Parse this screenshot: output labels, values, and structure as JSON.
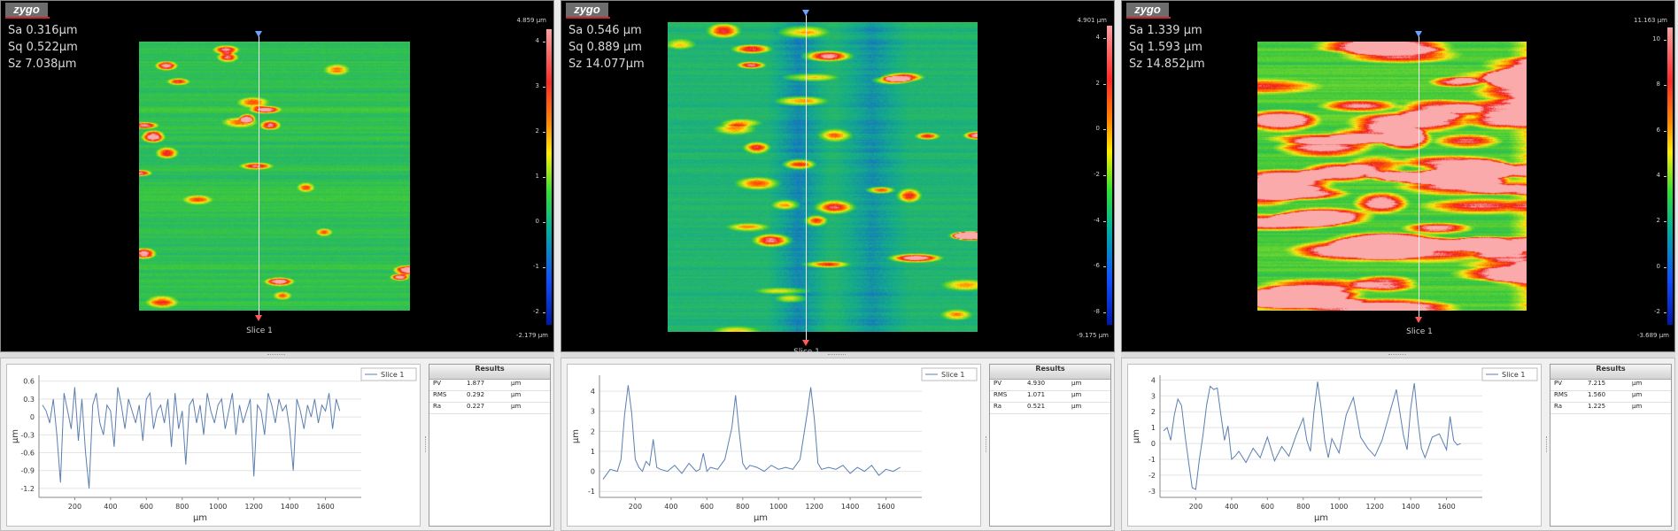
{
  "panels": [
    {
      "logo": "zygo",
      "stats": {
        "sa": "Sa 0.316µm",
        "sq": "Sq 0.522µm",
        "sz": "Sz 7.038µm"
      },
      "colorbar": {
        "max_label": "4.859 µm",
        "min_label": "-2.179 µm",
        "ticks": [
          "4",
          "3",
          "2",
          "1",
          "0",
          "-1",
          "-2"
        ]
      },
      "slice_label": "Slice 1",
      "legend": "Slice 1",
      "chart_data": {
        "type": "line",
        "x": [
          20,
          40,
          60,
          80,
          100,
          120,
          140,
          160,
          180,
          200,
          220,
          240,
          260,
          280,
          300,
          320,
          340,
          360,
          380,
          400,
          420,
          440,
          460,
          480,
          500,
          520,
          540,
          560,
          580,
          600,
          620,
          640,
          660,
          680,
          700,
          720,
          740,
          760,
          780,
          800,
          820,
          840,
          860,
          880,
          900,
          920,
          940,
          960,
          980,
          1000,
          1020,
          1040,
          1060,
          1080,
          1100,
          1120,
          1140,
          1160,
          1180,
          1200,
          1220,
          1240,
          1260,
          1280,
          1300,
          1320,
          1340,
          1360,
          1380,
          1400,
          1420,
          1440,
          1460,
          1480,
          1500,
          1520,
          1540,
          1560,
          1580,
          1600,
          1620,
          1640,
          1660,
          1680
        ],
        "y": [
          0.2,
          0.1,
          -0.1,
          0.3,
          -0.3,
          -1.1,
          0.4,
          0.1,
          -0.2,
          0.5,
          -0.4,
          0.3,
          -0.6,
          -1.2,
          0.2,
          0.4,
          -0.1,
          -0.3,
          0.2,
          0.1,
          -0.5,
          0.5,
          0.2,
          -0.2,
          0.3,
          0.1,
          -0.1,
          0.2,
          -0.4,
          0.3,
          0.4,
          -0.2,
          0.1,
          0.2,
          -0.1,
          0.3,
          -0.5,
          0.4,
          -0.2,
          0.1,
          -0.8,
          0.2,
          0.3,
          -0.1,
          0.2,
          -0.3,
          0.4,
          0.1,
          -0.1,
          0.2,
          0.3,
          -0.2,
          0.1,
          0.4,
          -0.3,
          0.2,
          -0.1,
          0.1,
          0.3,
          -1.0,
          0.2,
          0.1,
          -0.3,
          0.4,
          0.2,
          -0.1,
          0.3,
          0.1,
          0.2,
          -0.2,
          -0.9,
          0.3,
          0.1,
          -0.2,
          0.2,
          0.0,
          0.3,
          -0.1,
          0.2,
          0.1,
          0.4,
          -0.2,
          0.3,
          0.1
        ],
        "xlabel": "µm",
        "ylabel": "µm",
        "xticks": [
          200,
          400,
          600,
          800,
          1000,
          1200,
          1400,
          1600
        ],
        "yticks": [
          0.6,
          0.3,
          0,
          -0.3,
          -0.6,
          -0.9,
          -1.2
        ],
        "xlim": [
          0,
          1800
        ],
        "ylim": [
          -1.35,
          0.7
        ]
      },
      "results": {
        "title": "Results",
        "rows": [
          {
            "name": "PV",
            "value": "1.877",
            "unit": "µm"
          },
          {
            "name": "RMS",
            "value": "0.292",
            "unit": "µm"
          },
          {
            "name": "Ra",
            "value": "0.227",
            "unit": "µm"
          }
        ]
      }
    },
    {
      "logo": "zygo",
      "stats": {
        "sa": "Sa 0.546  µm",
        "sq": "Sq 0.889  µm",
        "sz": "Sz 14.077µm"
      },
      "colorbar": {
        "max_label": "4.901 µm",
        "min_label": "-9.175 µm",
        "ticks": [
          "4",
          "2",
          "0",
          "-2",
          "-4",
          "-6",
          "-8"
        ]
      },
      "slice_label": "Slice 1",
      "legend": "Slice 1",
      "chart_data": {
        "type": "line",
        "x": [
          20,
          60,
          100,
          120,
          140,
          160,
          180,
          200,
          220,
          240,
          260,
          280,
          300,
          320,
          340,
          380,
          420,
          460,
          500,
          540,
          560,
          580,
          600,
          620,
          660,
          700,
          740,
          760,
          780,
          800,
          820,
          840,
          880,
          920,
          960,
          1000,
          1040,
          1080,
          1120,
          1160,
          1180,
          1200,
          1220,
          1240,
          1280,
          1320,
          1360,
          1400,
          1440,
          1480,
          1520,
          1560,
          1600,
          1640,
          1680
        ],
        "y": [
          -0.4,
          0.1,
          0.0,
          0.6,
          2.8,
          4.3,
          2.9,
          0.6,
          0.2,
          0.0,
          0.5,
          0.3,
          1.6,
          0.2,
          0.1,
          0.0,
          0.3,
          -0.1,
          0.4,
          0.0,
          0.1,
          0.9,
          0.0,
          0.2,
          0.1,
          0.6,
          2.2,
          3.8,
          2.0,
          0.4,
          0.1,
          0.3,
          0.2,
          0.0,
          0.3,
          0.1,
          0.2,
          0.1,
          0.6,
          2.9,
          4.2,
          2.6,
          0.4,
          0.1,
          0.2,
          0.1,
          0.3,
          -0.1,
          0.2,
          0.0,
          0.3,
          -0.2,
          0.1,
          0.0,
          0.2
        ],
        "xlabel": "µm",
        "ylabel": "µm",
        "xticks": [
          200,
          400,
          600,
          800,
          1000,
          1200,
          1400,
          1600
        ],
        "yticks": [
          4,
          3,
          2,
          1,
          0,
          -1
        ],
        "xlim": [
          0,
          1800
        ],
        "ylim": [
          -1.3,
          4.8
        ]
      },
      "results": {
        "title": "Results",
        "rows": [
          {
            "name": "PV",
            "value": "4.930",
            "unit": "µm"
          },
          {
            "name": "RMS",
            "value": "1.071",
            "unit": "µm"
          },
          {
            "name": "Ra",
            "value": "0.521",
            "unit": "µm"
          }
        ]
      }
    },
    {
      "logo": "zygo",
      "stats": {
        "sa": "Sa 1.339  µm",
        "sq": "Sq 1.593  µm",
        "sz": "Sz 14.852µm"
      },
      "colorbar": {
        "max_label": "11.163 µm",
        "min_label": "-3.689 µm",
        "ticks": [
          "10",
          "8",
          "6",
          "4",
          "2",
          "0",
          "-2"
        ]
      },
      "slice_label": "Slice 1",
      "legend": "Slice 1",
      "chart_data": {
        "type": "line",
        "x": [
          20,
          40,
          60,
          80,
          100,
          120,
          140,
          160,
          180,
          200,
          220,
          240,
          260,
          280,
          300,
          320,
          340,
          360,
          380,
          400,
          420,
          440,
          480,
          520,
          560,
          600,
          640,
          680,
          720,
          760,
          800,
          820,
          840,
          860,
          880,
          900,
          920,
          940,
          960,
          1000,
          1040,
          1080,
          1120,
          1160,
          1200,
          1240,
          1280,
          1320,
          1360,
          1380,
          1400,
          1420,
          1440,
          1460,
          1480,
          1520,
          1560,
          1600,
          1620,
          1640,
          1660,
          1680
        ],
        "y": [
          0.8,
          1.0,
          0.2,
          1.8,
          2.8,
          2.4,
          0.5,
          -1.2,
          -2.8,
          -2.9,
          -1.0,
          0.5,
          2.4,
          3.6,
          3.4,
          3.5,
          1.8,
          0.2,
          1.1,
          -1.0,
          -0.8,
          -0.5,
          -1.2,
          -0.3,
          -0.9,
          0.4,
          -1.1,
          -0.2,
          -0.8,
          0.5,
          1.6,
          0.2,
          -0.5,
          2.0,
          3.9,
          2.2,
          0.2,
          -0.9,
          0.3,
          -0.6,
          1.8,
          2.9,
          0.4,
          -0.3,
          -0.8,
          0.2,
          1.8,
          3.4,
          0.5,
          -0.4,
          2.2,
          3.8,
          1.5,
          -0.3,
          -0.9,
          0.4,
          0.6,
          -0.4,
          1.7,
          0.2,
          -0.1,
          0.0
        ],
        "xlabel": "µm",
        "ylabel": "µm",
        "xticks": [
          200,
          400,
          600,
          800,
          1000,
          1200,
          1400,
          1600
        ],
        "yticks": [
          4,
          3,
          2,
          1,
          0,
          -1,
          -2,
          -3
        ],
        "xlim": [
          0,
          1800
        ],
        "ylim": [
          -3.4,
          4.3
        ]
      },
      "results": {
        "title": "Results",
        "rows": [
          {
            "name": "PV",
            "value": "7.215",
            "unit": "µm"
          },
          {
            "name": "RMS",
            "value": "1.560",
            "unit": "µm"
          },
          {
            "name": "Ra",
            "value": "1.225",
            "unit": "µm"
          }
        ]
      }
    }
  ]
}
